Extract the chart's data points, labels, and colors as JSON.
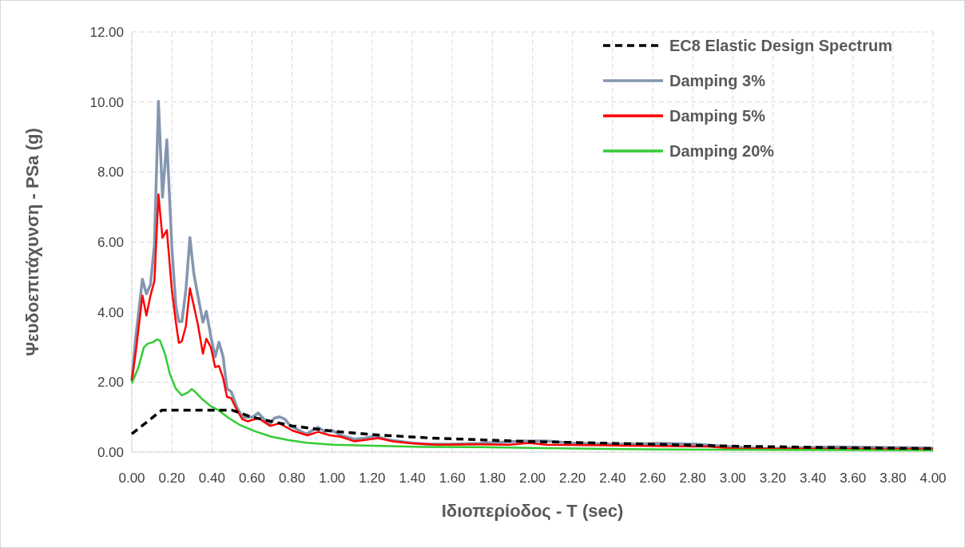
{
  "chart_data": {
    "type": "line",
    "xlabel": "Ιδιοπερίοδος - T (sec)",
    "ylabel": "Ψευδοεπιτάχυνση - PSa (g)",
    "xlim": [
      0,
      4
    ],
    "ylim": [
      0,
      12
    ],
    "xticks": [
      {
        "value": 0,
        "label": "0.00"
      },
      {
        "value": 0.2,
        "label": "0.20"
      },
      {
        "value": 0.4,
        "label": "0.40"
      },
      {
        "value": 0.6,
        "label": "0.60"
      },
      {
        "value": 0.8,
        "label": "0.80"
      },
      {
        "value": 1,
        "label": "1.00"
      },
      {
        "value": 1.2,
        "label": "1.20"
      },
      {
        "value": 1.4,
        "label": "1.40"
      },
      {
        "value": 1.6,
        "label": "1.60"
      },
      {
        "value": 1.8,
        "label": "1.80"
      },
      {
        "value": 2,
        "label": "2.00"
      },
      {
        "value": 2.2,
        "label": "2.20"
      },
      {
        "value": 2.4,
        "label": "2.40"
      },
      {
        "value": 2.6,
        "label": "2.60"
      },
      {
        "value": 2.8,
        "label": "2.80"
      },
      {
        "value": 3,
        "label": "3.00"
      },
      {
        "value": 3.2,
        "label": "3.20"
      },
      {
        "value": 3.4,
        "label": "3.40"
      },
      {
        "value": 3.6,
        "label": "3.60"
      },
      {
        "value": 3.8,
        "label": "3.80"
      },
      {
        "value": 4,
        "label": "4.00"
      }
    ],
    "yticks": [
      {
        "value": 0,
        "label": "0.00"
      },
      {
        "value": 2,
        "label": "2.00"
      },
      {
        "value": 4,
        "label": "4.00"
      },
      {
        "value": 6,
        "label": "6.00"
      },
      {
        "value": 8,
        "label": "8.00"
      },
      {
        "value": 10,
        "label": "10.00"
      },
      {
        "value": 12,
        "label": "12.00"
      }
    ],
    "grid": true,
    "legend": "top right",
    "marker": "none",
    "series": [
      {
        "name": "EC8 Elastic Design Spectrum",
        "color": "#000000",
        "line_style": "dashed",
        "x": [
          0,
          0.15,
          0.5,
          0.6,
          0.8,
          1.0,
          1.2,
          1.5,
          2.0,
          2.5,
          3.0,
          3.5,
          4.0
        ],
        "values": [
          0.52,
          1.2,
          1.2,
          1.0,
          0.75,
          0.6,
          0.5,
          0.4,
          0.3,
          0.24,
          0.17,
          0.13,
          0.1
        ]
      },
      {
        "name": "Damping 3%",
        "color": "#8496b0",
        "line_style": "solid",
        "x": [
          0,
          0.02,
          0.053,
          0.073,
          0.093,
          0.113,
          0.133,
          0.153,
          0.175,
          0.2,
          0.22,
          0.235,
          0.25,
          0.27,
          0.29,
          0.31,
          0.33,
          0.355,
          0.372,
          0.395,
          0.416,
          0.435,
          0.456,
          0.475,
          0.496,
          0.525,
          0.552,
          0.578,
          0.605,
          0.631,
          0.66,
          0.691,
          0.711,
          0.738,
          0.765,
          0.791,
          0.871,
          0.93,
          0.964,
          0.997,
          1.044,
          1.11,
          1.163,
          1.216,
          1.283,
          1.389,
          1.47,
          1.6,
          1.735,
          1.96,
          2.07,
          2.19,
          2.42,
          2.65,
          2.82,
          3.0,
          3.19,
          3.5,
          3.81,
          4.0
        ],
        "values": [
          2.03,
          3.3,
          4.94,
          4.52,
          4.78,
          5.92,
          10.02,
          7.28,
          8.92,
          5.84,
          4.17,
          3.73,
          3.73,
          4.63,
          6.13,
          5.08,
          4.47,
          3.71,
          4.02,
          3.29,
          2.72,
          3.14,
          2.72,
          1.81,
          1.73,
          1.28,
          1.0,
          0.99,
          1.01,
          1.12,
          0.94,
          0.81,
          0.97,
          1.01,
          0.94,
          0.75,
          0.52,
          0.71,
          0.59,
          0.63,
          0.48,
          0.37,
          0.4,
          0.46,
          0.35,
          0.27,
          0.23,
          0.23,
          0.25,
          0.32,
          0.32,
          0.26,
          0.23,
          0.25,
          0.23,
          0.15,
          0.1,
          0.15,
          0.13,
          0.12
        ]
      },
      {
        "name": "Damping 5%",
        "color": "#ff0000",
        "line_style": "solid",
        "x": [
          0,
          0.02,
          0.053,
          0.073,
          0.093,
          0.113,
          0.133,
          0.153,
          0.175,
          0.2,
          0.22,
          0.235,
          0.25,
          0.27,
          0.29,
          0.31,
          0.33,
          0.355,
          0.372,
          0.395,
          0.416,
          0.435,
          0.456,
          0.475,
          0.496,
          0.525,
          0.552,
          0.578,
          0.631,
          0.691,
          0.738,
          0.804,
          0.877,
          0.93,
          0.99,
          1.044,
          1.11,
          1.163,
          1.23,
          1.31,
          1.4,
          1.53,
          1.735,
          1.885,
          1.98,
          2.07,
          2.42,
          2.88,
          3.0,
          4.0
        ],
        "values": [
          2.03,
          2.87,
          4.47,
          3.9,
          4.47,
          4.89,
          7.36,
          6.12,
          6.34,
          4.62,
          3.71,
          3.12,
          3.17,
          3.6,
          4.68,
          4.17,
          3.64,
          2.81,
          3.24,
          2.99,
          2.43,
          2.46,
          2.11,
          1.58,
          1.54,
          1.2,
          0.94,
          0.88,
          0.97,
          0.75,
          0.82,
          0.61,
          0.48,
          0.58,
          0.48,
          0.44,
          0.31,
          0.35,
          0.4,
          0.3,
          0.25,
          0.21,
          0.22,
          0.21,
          0.26,
          0.21,
          0.19,
          0.16,
          0.1,
          0.09
        ]
      },
      {
        "name": "Damping 20%",
        "color": "#33cc33",
        "line_style": "solid",
        "x": [
          0,
          0.033,
          0.06,
          0.08,
          0.106,
          0.126,
          0.14,
          0.166,
          0.19,
          0.22,
          0.25,
          0.279,
          0.299,
          0.319,
          0.352,
          0.392,
          0.432,
          0.485,
          0.538,
          0.618,
          0.698,
          0.778,
          0.871,
          1.004,
          1.2,
          1.47,
          1.74,
          2.0,
          2.58,
          3.0,
          4.0
        ],
        "values": [
          1.96,
          2.42,
          2.99,
          3.1,
          3.14,
          3.22,
          3.19,
          2.8,
          2.23,
          1.81,
          1.62,
          1.7,
          1.8,
          1.71,
          1.51,
          1.32,
          1.2,
          0.97,
          0.78,
          0.59,
          0.44,
          0.35,
          0.27,
          0.21,
          0.18,
          0.15,
          0.14,
          0.12,
          0.08,
          0.07,
          0.05
        ]
      }
    ]
  }
}
